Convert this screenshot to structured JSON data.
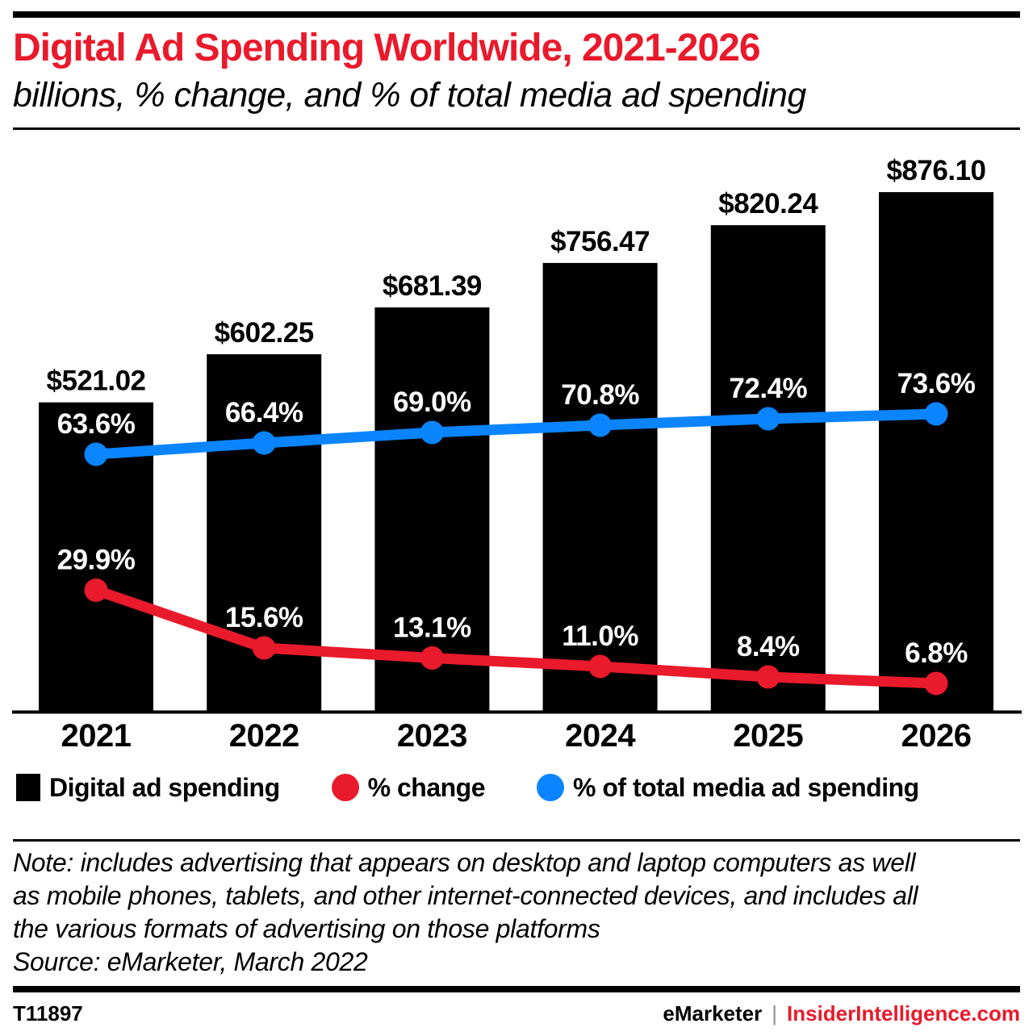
{
  "header": {
    "title": "Digital Ad Spending Worldwide, 2021-2026",
    "subtitle": "billions, % change, and % of total media ad spending"
  },
  "chart_data": {
    "type": "combo-bar-line",
    "title": "Digital Ad Spending Worldwide, 2021-2026",
    "subtitle": "billions, % change, and % of total media ad spending",
    "categories": [
      "2021",
      "2022",
      "2023",
      "2024",
      "2025",
      "2026"
    ],
    "series": [
      {
        "name": "Digital ad spending",
        "type": "bar",
        "unit": "billions of US dollars",
        "color": "#000000",
        "values": [
          521.02,
          602.25,
          681.39,
          756.47,
          820.24,
          876.1
        ],
        "labels": [
          "$521.02",
          "$602.25",
          "$681.39",
          "$756.47",
          "$820.24",
          "$876.10"
        ]
      },
      {
        "name": "% change",
        "type": "line",
        "unit": "percent",
        "color": "#e81a2b",
        "values": [
          29.9,
          15.6,
          13.1,
          11.0,
          8.4,
          6.8
        ],
        "labels": [
          "29.9%",
          "15.6%",
          "13.1%",
          "11.0%",
          "8.4%",
          "6.8%"
        ]
      },
      {
        "name": "% of total media ad spending",
        "type": "line",
        "unit": "percent",
        "color": "#0a85ff",
        "values": [
          63.6,
          66.4,
          69.0,
          70.8,
          72.4,
          73.6
        ],
        "labels": [
          "63.6%",
          "66.4%",
          "69.0%",
          "70.8%",
          "72.4%",
          "73.6%"
        ]
      }
    ],
    "axes": {
      "x": {
        "visible": true,
        "labels": [
          "2021",
          "2022",
          "2023",
          "2024",
          "2025",
          "2026"
        ]
      },
      "y_left": {
        "visible": false,
        "implied_range": [
          0,
          970
        ]
      },
      "y_right": {
        "visible": false,
        "implied_range": [
          0,
          152
        ]
      }
    },
    "grid": false,
    "legend_position": "bottom",
    "data_labels": "all points labeled"
  },
  "legend": {
    "items": [
      {
        "label": "Digital ad spending",
        "swatch": "square",
        "color": "#000000"
      },
      {
        "label": "% change",
        "swatch": "circle",
        "color": "#e81a2b"
      },
      {
        "label": "% of total media ad spending",
        "swatch": "circle",
        "color": "#0a85ff"
      }
    ]
  },
  "note": {
    "lines": [
      "Note: includes advertising that appears on desktop and laptop computers as well",
      "as mobile phones, tablets, and other internet-connected devices, and includes all",
      "the various formats of advertising on those platforms"
    ],
    "source": "Source: eMarketer, March 2022"
  },
  "footer": {
    "chart_id": "T11897",
    "brand": "eMarketer",
    "separator": "|",
    "site": "InsiderIntelligence.com"
  },
  "colors": {
    "accent_red": "#e81a2b",
    "line_blue": "#0a85ff",
    "bar_black": "#000000"
  }
}
